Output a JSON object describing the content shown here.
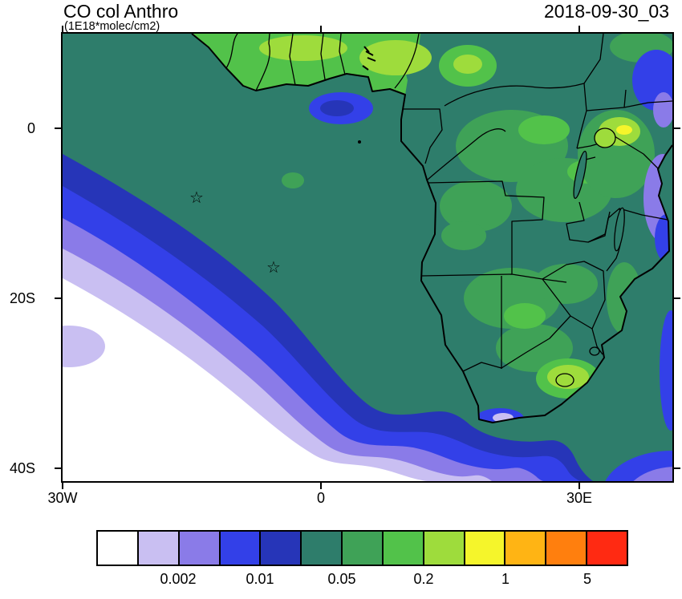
{
  "page": {
    "title": "CO col Anthro",
    "subtitle": "(1E18*molec/cm2)",
    "timestamp": "2018-09-30_03"
  },
  "axes": {
    "y_tick_labels": [
      "0",
      "20S",
      "40S"
    ],
    "x_tick_labels": [
      "30W",
      "0",
      "30E"
    ]
  },
  "markers": {
    "glyph": "☆"
  },
  "chart_data": {
    "type": "heatmap",
    "title": "CO col Anthro",
    "units_label": "(1E18*molec/cm2)",
    "timestamp": "2018-09-30_03",
    "x_ticks": [
      "30W",
      "0",
      "30E"
    ],
    "y_ticks": [
      "0",
      "20S",
      "40S"
    ],
    "extent": {
      "lon_min": -30,
      "lon_max": 41,
      "lat_min": -41,
      "lat_max": 11
    },
    "contour_levels": [
      0.001,
      0.002,
      0.005,
      0.01,
      0.02,
      0.05,
      0.1,
      0.2,
      0.5,
      1,
      2,
      5
    ],
    "colorbar_tick_labels": [
      "0.002",
      "0.01",
      "0.05",
      "0.2",
      "1",
      "5"
    ],
    "palette": [
      "#ffffff",
      "#c9bff2",
      "#8a7be8",
      "#3340e8",
      "#2635b8",
      "#2e7d6b",
      "#3fa257",
      "#52c24a",
      "#9edc3c",
      "#f5f52b",
      "#ffb414",
      "#ff7f0e",
      "#ff2a12"
    ],
    "legend_position": "bottom",
    "grid": false,
    "markers": [
      {
        "symbol": "star",
        "lon": -14.4,
        "lat": -7.9
      },
      {
        "symbol": "star",
        "lon": -5.7,
        "lat": -15.9
      }
    ]
  }
}
